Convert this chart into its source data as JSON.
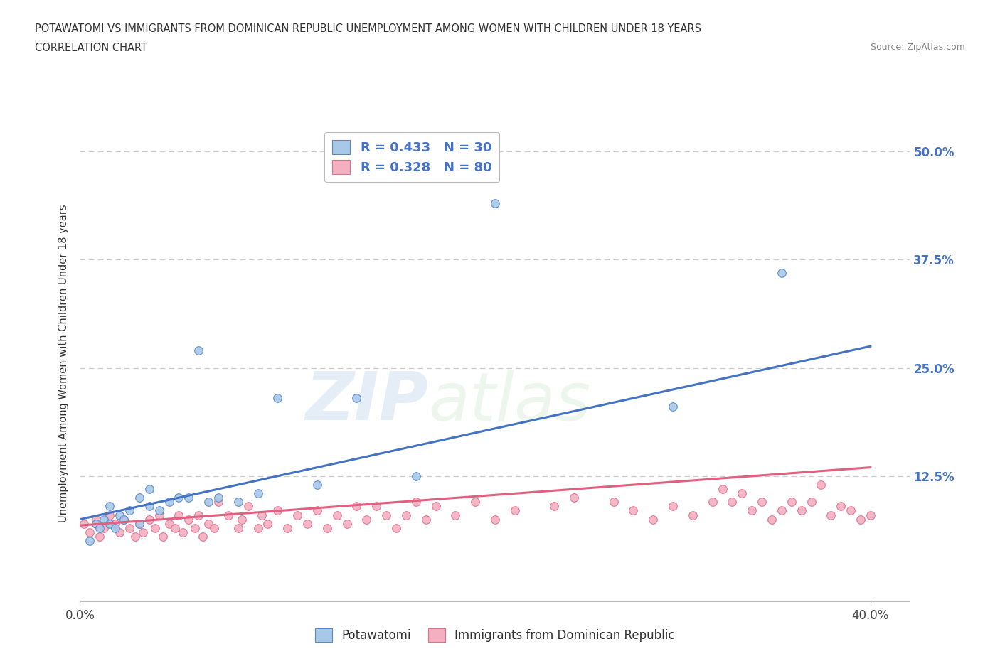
{
  "title_line1": "POTAWATOMI VS IMMIGRANTS FROM DOMINICAN REPUBLIC UNEMPLOYMENT AMONG WOMEN WITH CHILDREN UNDER 18 YEARS",
  "title_line2": "CORRELATION CHART",
  "source_text": "Source: ZipAtlas.com",
  "ylabel": "Unemployment Among Women with Children Under 18 years",
  "watermark_zip": "ZIP",
  "watermark_atlas": "atlas",
  "xlim": [
    0.0,
    0.42
  ],
  "ylim": [
    -0.02,
    0.53
  ],
  "ytick_values": [
    0.125,
    0.25,
    0.375,
    0.5
  ],
  "ytick_labels": [
    "12.5%",
    "25.0%",
    "37.5%",
    "50.0%"
  ],
  "xtick_values": [
    0.0,
    0.4
  ],
  "xtick_labels": [
    "0.0%",
    "40.0%"
  ],
  "blue_R": 0.433,
  "blue_N": 30,
  "pink_R": 0.328,
  "pink_N": 80,
  "blue_fill": "#a8c8e8",
  "pink_fill": "#f4afc0",
  "blue_edge": "#5588cc",
  "pink_edge": "#e07090",
  "blue_line_color": "#4472c4",
  "pink_line_color": "#e06080",
  "legend_text_color": "#4472c4",
  "background_color": "#ffffff",
  "blue_line_y_start": 0.075,
  "blue_line_y_end": 0.275,
  "pink_line_y_start": 0.068,
  "pink_line_y_end": 0.135,
  "blue_scatter_x": [
    0.005,
    0.008,
    0.01,
    0.012,
    0.015,
    0.015,
    0.018,
    0.02,
    0.022,
    0.025,
    0.03,
    0.03,
    0.035,
    0.035,
    0.04,
    0.045,
    0.05,
    0.055,
    0.06,
    0.065,
    0.07,
    0.08,
    0.09,
    0.1,
    0.12,
    0.14,
    0.17,
    0.21,
    0.3,
    0.355
  ],
  "blue_scatter_y": [
    0.05,
    0.07,
    0.065,
    0.075,
    0.07,
    0.09,
    0.065,
    0.08,
    0.075,
    0.085,
    0.07,
    0.1,
    0.09,
    0.11,
    0.085,
    0.095,
    0.1,
    0.1,
    0.27,
    0.095,
    0.1,
    0.095,
    0.105,
    0.215,
    0.115,
    0.215,
    0.125,
    0.44,
    0.205,
    0.36
  ],
  "pink_scatter_x": [
    0.002,
    0.005,
    0.008,
    0.01,
    0.012,
    0.015,
    0.018,
    0.02,
    0.022,
    0.025,
    0.028,
    0.03,
    0.032,
    0.035,
    0.038,
    0.04,
    0.042,
    0.045,
    0.048,
    0.05,
    0.052,
    0.055,
    0.058,
    0.06,
    0.062,
    0.065,
    0.068,
    0.07,
    0.075,
    0.08,
    0.082,
    0.085,
    0.09,
    0.092,
    0.095,
    0.1,
    0.105,
    0.11,
    0.115,
    0.12,
    0.125,
    0.13,
    0.135,
    0.14,
    0.145,
    0.15,
    0.155,
    0.16,
    0.165,
    0.17,
    0.175,
    0.18,
    0.19,
    0.2,
    0.21,
    0.22,
    0.24,
    0.25,
    0.27,
    0.28,
    0.29,
    0.3,
    0.31,
    0.32,
    0.325,
    0.33,
    0.335,
    0.34,
    0.345,
    0.35,
    0.355,
    0.36,
    0.365,
    0.37,
    0.375,
    0.38,
    0.385,
    0.39,
    0.395,
    0.4
  ],
  "pink_scatter_y": [
    0.07,
    0.06,
    0.075,
    0.055,
    0.065,
    0.08,
    0.07,
    0.06,
    0.075,
    0.065,
    0.055,
    0.07,
    0.06,
    0.075,
    0.065,
    0.08,
    0.055,
    0.07,
    0.065,
    0.08,
    0.06,
    0.075,
    0.065,
    0.08,
    0.055,
    0.07,
    0.065,
    0.095,
    0.08,
    0.065,
    0.075,
    0.09,
    0.065,
    0.08,
    0.07,
    0.085,
    0.065,
    0.08,
    0.07,
    0.085,
    0.065,
    0.08,
    0.07,
    0.09,
    0.075,
    0.09,
    0.08,
    0.065,
    0.08,
    0.095,
    0.075,
    0.09,
    0.08,
    0.095,
    0.075,
    0.085,
    0.09,
    0.1,
    0.095,
    0.085,
    0.075,
    0.09,
    0.08,
    0.095,
    0.11,
    0.095,
    0.105,
    0.085,
    0.095,
    0.075,
    0.085,
    0.095,
    0.085,
    0.095,
    0.115,
    0.08,
    0.09,
    0.085,
    0.075,
    0.08
  ]
}
